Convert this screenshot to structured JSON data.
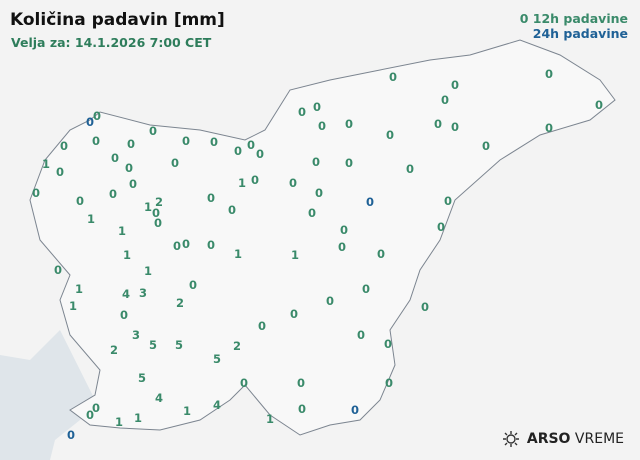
{
  "header": {
    "title": "Količina padavin [mm]",
    "valid": "Velja za: 14.1.2026 7:00 CET"
  },
  "legend": {
    "h12": "12h padavine",
    "h24": "24h padavine",
    "sample": "0",
    "colors": {
      "h12": "#3a8a6a",
      "h24": "#1f6196"
    }
  },
  "logo": {
    "brand": "ARSO",
    "product": "VREME",
    "icon": "sun-icon"
  },
  "stations_12h": [
    "0",
    "0",
    "0",
    "0",
    "0",
    "0",
    "0",
    "0",
    "0",
    "0",
    "1",
    "0",
    "0",
    "0",
    "0",
    "0",
    "0",
    "0",
    "0",
    "1",
    "1",
    "1",
    "2",
    "0",
    "0",
    "1",
    "0",
    "0",
    "0",
    "0",
    "0",
    "0",
    "1",
    "1",
    "0",
    "1",
    "1",
    "4",
    "3",
    "0",
    "2",
    "1",
    "3",
    "2",
    "5",
    "5",
    "0",
    "2",
    "5",
    "5",
    "4",
    "1",
    "4",
    "0",
    "0",
    "0",
    "1",
    "1",
    "1",
    "0",
    "0",
    "0",
    "0",
    "0",
    "0",
    "0",
    "0",
    "0",
    "0",
    "0",
    "0",
    "0",
    "0",
    "0",
    "0",
    "0",
    "0",
    "0",
    "0",
    "0",
    "0",
    "0",
    "0",
    "0",
    "1",
    "0",
    "0",
    "0",
    "0",
    "0",
    "0",
    "0",
    "0",
    "0",
    "0",
    "0",
    "0"
  ],
  "stations_24h": [
    "0",
    "0",
    "0",
    "0"
  ]
}
